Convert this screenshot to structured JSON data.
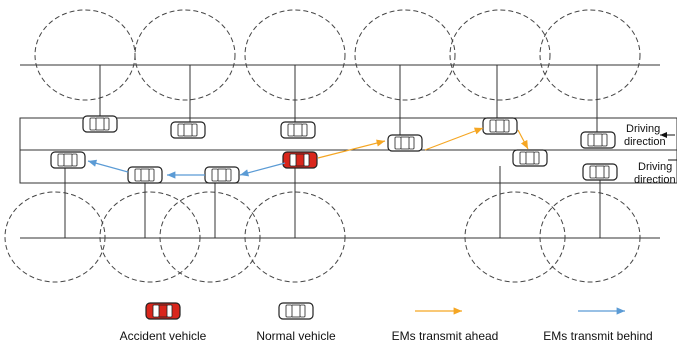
{
  "annotations": [
    {
      "lines": [
        "Driving",
        "direction"
      ]
    },
    {
      "lines": [
        "Driving",
        "direction"
      ]
    }
  ],
  "legend": [
    {
      "label": "Accident vehicle"
    },
    {
      "label": "Normal vehicle"
    },
    {
      "label": "EMs transmit ahead"
    },
    {
      "label": "EMs transmit behind"
    }
  ]
}
